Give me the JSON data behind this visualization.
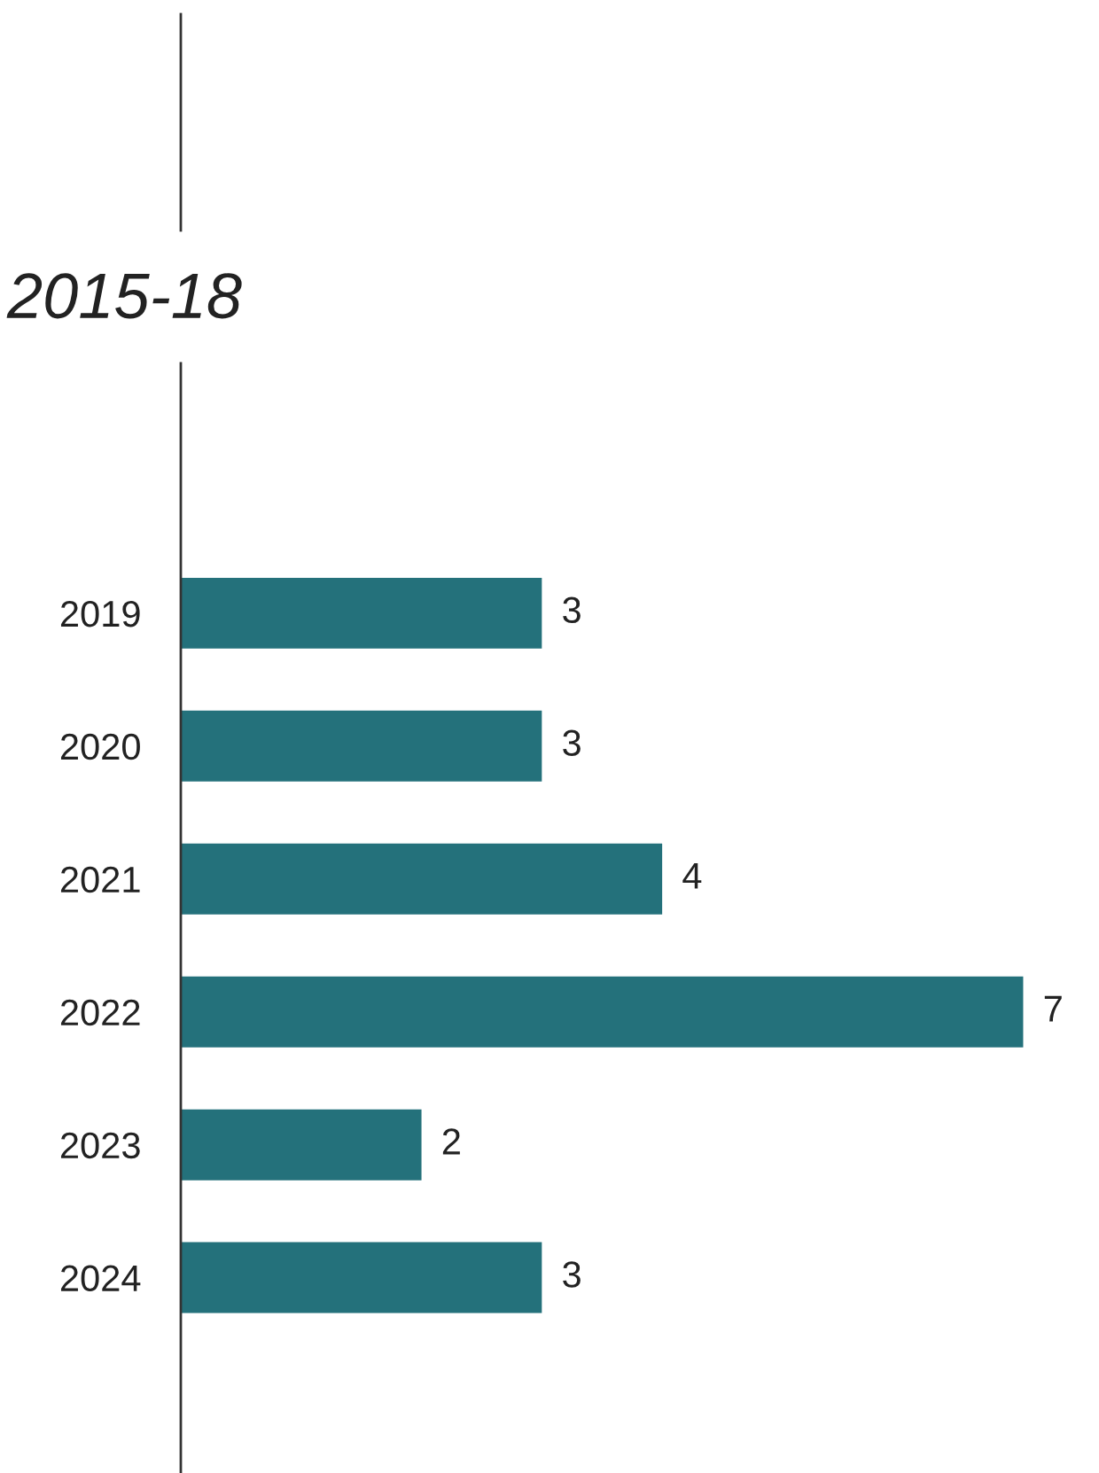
{
  "chart_data": {
    "type": "bar",
    "orientation": "horizontal",
    "title": "2015-18",
    "categories": [
      "2019",
      "2020",
      "2021",
      "2022",
      "2023",
      "2024"
    ],
    "values": [
      3,
      3,
      4,
      7,
      2,
      3
    ],
    "color": "#24717b",
    "data_labels": true,
    "tick_labels": "y",
    "grid": false,
    "legend": false
  }
}
